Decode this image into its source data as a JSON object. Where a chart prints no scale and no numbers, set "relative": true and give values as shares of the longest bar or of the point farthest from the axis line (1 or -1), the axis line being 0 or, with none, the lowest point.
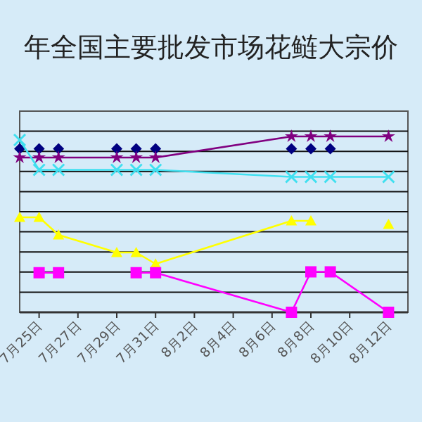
{
  "chart_data": {
    "type": "line",
    "title": "年全国主要批发市场花鲢大宗价",
    "relative": true,
    "grid": "y",
    "x": [
      "--07-24",
      "--07-25",
      "--07-26",
      "--07-29",
      "--07-30",
      "--07-31",
      "--08-07",
      "--08-08",
      "--08-09",
      "--08-12"
    ],
    "xlim": [
      "--07-24",
      "--08-13"
    ],
    "xticks": [
      {
        "value": "--07-25",
        "label": "7月25日"
      },
      {
        "value": "--07-27",
        "label": "7月27日"
      },
      {
        "value": "--07-29",
        "label": "7月29日"
      },
      {
        "value": "--07-31",
        "label": "7月31日"
      },
      {
        "value": "--08-02",
        "label": "8月2日"
      },
      {
        "value": "--08-04",
        "label": "8月4日"
      },
      {
        "value": "--08-06",
        "label": "8月6日"
      },
      {
        "value": "--08-08",
        "label": "8月8日"
      },
      {
        "value": "--08-10",
        "label": "8月10日"
      },
      {
        "value": "--08-12",
        "label": "8月12日"
      }
    ],
    "series": [
      {
        "type": "scatter",
        "color": "#000080",
        "marker": "diamond",
        "values": [
          0.93,
          0.93,
          0.93,
          0.93,
          0.93,
          0.93,
          0.93,
          0.93,
          0.93,
          null
        ]
      },
      {
        "color": "#800080",
        "marker": "star",
        "values": [
          0.88,
          0.88,
          0.88,
          0.88,
          0.88,
          0.88,
          1.0,
          1.0,
          1.0,
          1.0
        ]
      },
      {
        "color": "#40e0f0",
        "marker": "cross",
        "values": [
          0.98,
          0.81,
          0.81,
          0.81,
          0.81,
          0.81,
          0.77,
          0.77,
          0.77,
          0.77
        ]
      },
      {
        "color": "#ffff00",
        "marker": "triangle",
        "values": [
          0.54,
          0.54,
          0.44,
          0.34,
          0.34,
          0.275,
          0.52,
          0.52,
          null,
          0.5
        ]
      },
      {
        "color": "#ff00ff",
        "marker": "square",
        "values": [
          null,
          0.225,
          0.225,
          null,
          0.225,
          0.225,
          0,
          0.23,
          0.23,
          0
        ]
      }
    ]
  }
}
